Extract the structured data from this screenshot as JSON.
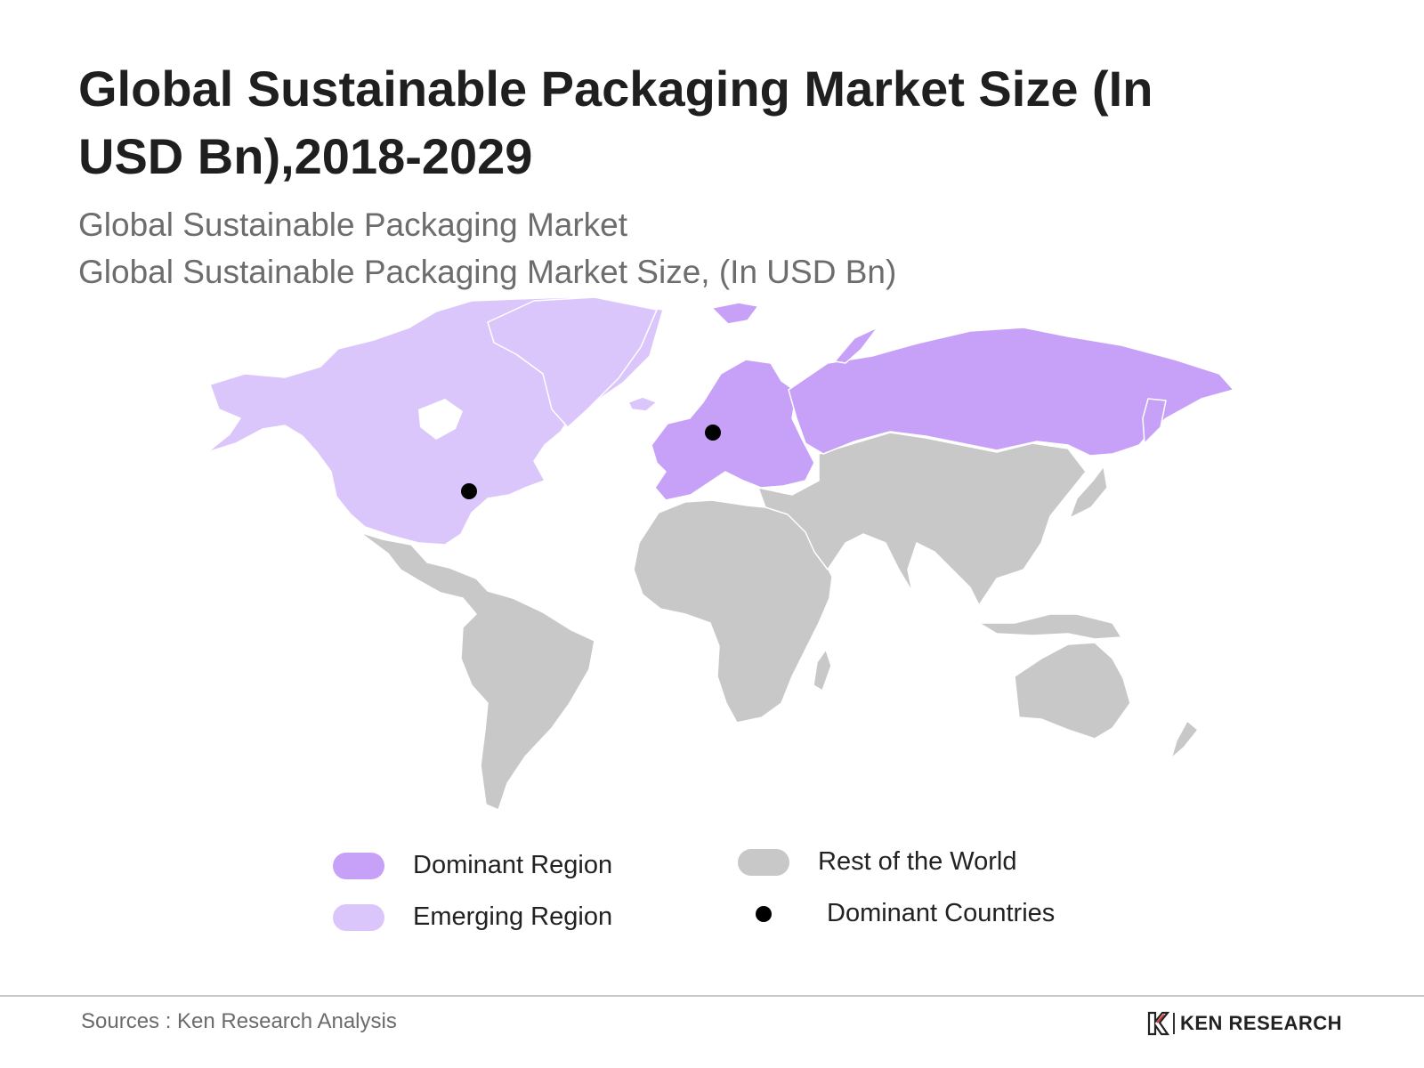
{
  "header": {
    "title": "Global Sustainable Packaging Market Size (In USD Bn),2018-2029",
    "subtitle_line1": "Global Sustainable Packaging Market",
    "subtitle_line2": "Global Sustainable Packaging Market Size, (In USD Bn)"
  },
  "map": {
    "regions": [
      {
        "name": "Europe & Russia",
        "category": "dominant"
      },
      {
        "name": "North America & Greenland",
        "category": "emerging"
      },
      {
        "name": "Latin America",
        "category": "rest"
      },
      {
        "name": "Africa",
        "category": "rest"
      },
      {
        "name": "Middle East & Asia",
        "category": "rest"
      },
      {
        "name": "Oceania",
        "category": "rest"
      }
    ],
    "dominant_countries": [
      "United States",
      "Germany"
    ]
  },
  "colors": {
    "dominant": "#c7a0f8",
    "emerging": "#dbc6fb",
    "rest": "#c8c8c8",
    "dot": "#000000"
  },
  "legend": {
    "dominant": "Dominant Region",
    "emerging": "Emerging Region",
    "rest": "Rest of the World",
    "countries": "Dominant Countries"
  },
  "footer": {
    "source": "Sources : Ken Research Analysis",
    "brand": "KEN RESEARCH"
  }
}
